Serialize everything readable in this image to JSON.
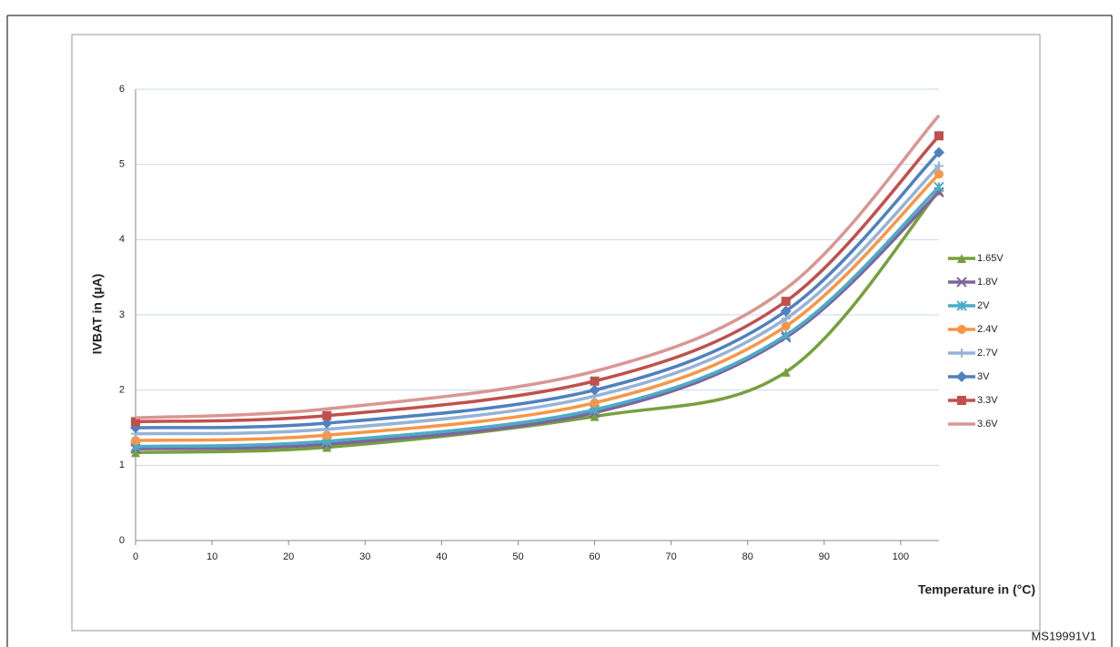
{
  "chart_data": {
    "type": "line",
    "y_label": "IVBAT in (µA)",
    "x_label": "Temperature in (°C)",
    "footnote": "MS19991V1",
    "x": [
      0,
      25,
      60,
      85,
      105
    ],
    "xlim": [
      0,
      105
    ],
    "xticks": [
      0,
      10,
      20,
      30,
      40,
      50,
      60,
      70,
      80,
      90,
      100
    ],
    "ylim": [
      0,
      6
    ],
    "yticks": [
      0,
      1,
      2,
      3,
      4,
      5,
      6
    ],
    "grid": true,
    "legend": "right",
    "series": [
      {
        "name": "1.65V",
        "color": "#77a03c",
        "marker": "triangle",
        "values": [
          1.17,
          1.24,
          1.65,
          2.24,
          4.65
        ]
      },
      {
        "name": "1.8V",
        "color": "#7e649e",
        "marker": "x",
        "values": [
          1.22,
          1.28,
          1.7,
          2.7,
          4.63
        ]
      },
      {
        "name": "2V",
        "color": "#4bacc6",
        "marker": "star",
        "values": [
          1.25,
          1.32,
          1.74,
          2.73,
          4.7
        ]
      },
      {
        "name": "2.4V",
        "color": "#f79646",
        "marker": "circle",
        "values": [
          1.33,
          1.4,
          1.83,
          2.85,
          4.87
        ]
      },
      {
        "name": "2.7V",
        "color": "#95b3d7",
        "marker": "plus",
        "values": [
          1.42,
          1.48,
          1.92,
          2.95,
          4.98
        ]
      },
      {
        "name": "3V",
        "color": "#4f81bd",
        "marker": "diamond",
        "values": [
          1.5,
          1.56,
          2.0,
          3.05,
          5.16
        ]
      },
      {
        "name": "3.3V",
        "color": "#c0504d",
        "marker": "square",
        "values": [
          1.58,
          1.66,
          2.12,
          3.18,
          5.38
        ]
      },
      {
        "name": "3.6V",
        "color": "#d99694",
        "marker": "none",
        "values": [
          1.63,
          1.75,
          2.25,
          3.35,
          5.65
        ]
      }
    ]
  }
}
